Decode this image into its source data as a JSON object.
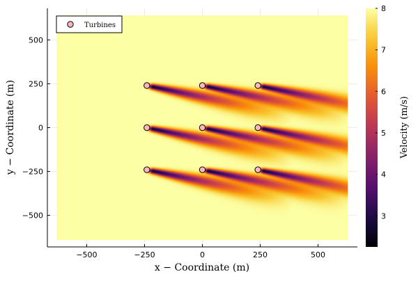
{
  "chart_data": {
    "type": "heatmap",
    "title": "",
    "xlabel": "x − Coordinate (m)",
    "ylabel": "y − Coordinate (m)",
    "xlim": [
      -670,
      670
    ],
    "ylim": [
      -680,
      680
    ],
    "domain": {
      "x": [
        -630,
        630
      ],
      "y": [
        -640,
        640
      ]
    },
    "xticks": [
      -500,
      -250,
      0,
      250,
      500
    ],
    "yticks": [
      -500,
      -250,
      0,
      250,
      500
    ],
    "xtick_labels": [
      "−500",
      "−250",
      "0",
      "250",
      "500"
    ],
    "ytick_labels": [
      "−500",
      "−250",
      "0",
      "250",
      "500"
    ],
    "grid": true,
    "colorbar": {
      "label": "Velocity (m/s)",
      "min": 2.25,
      "max": 8,
      "ticks": [
        3,
        4,
        5,
        6,
        7,
        8
      ],
      "tick_labels": [
        "3",
        "4",
        "5",
        "6",
        "7",
        "8"
      ],
      "colormap": "inferno"
    },
    "free_stream_velocity": 8,
    "wake_angle_deg": 15,
    "legend": {
      "position": "top-left",
      "entries": [
        "Turbines"
      ]
    },
    "series": [
      {
        "name": "Turbines",
        "type": "scatter",
        "color": "#ffb6c1",
        "x": [
          -240,
          0,
          240,
          -240,
          0,
          240,
          -240,
          0,
          240
        ],
        "y": [
          240,
          240,
          240,
          0,
          0,
          0,
          -240,
          -240,
          -240
        ]
      }
    ]
  }
}
